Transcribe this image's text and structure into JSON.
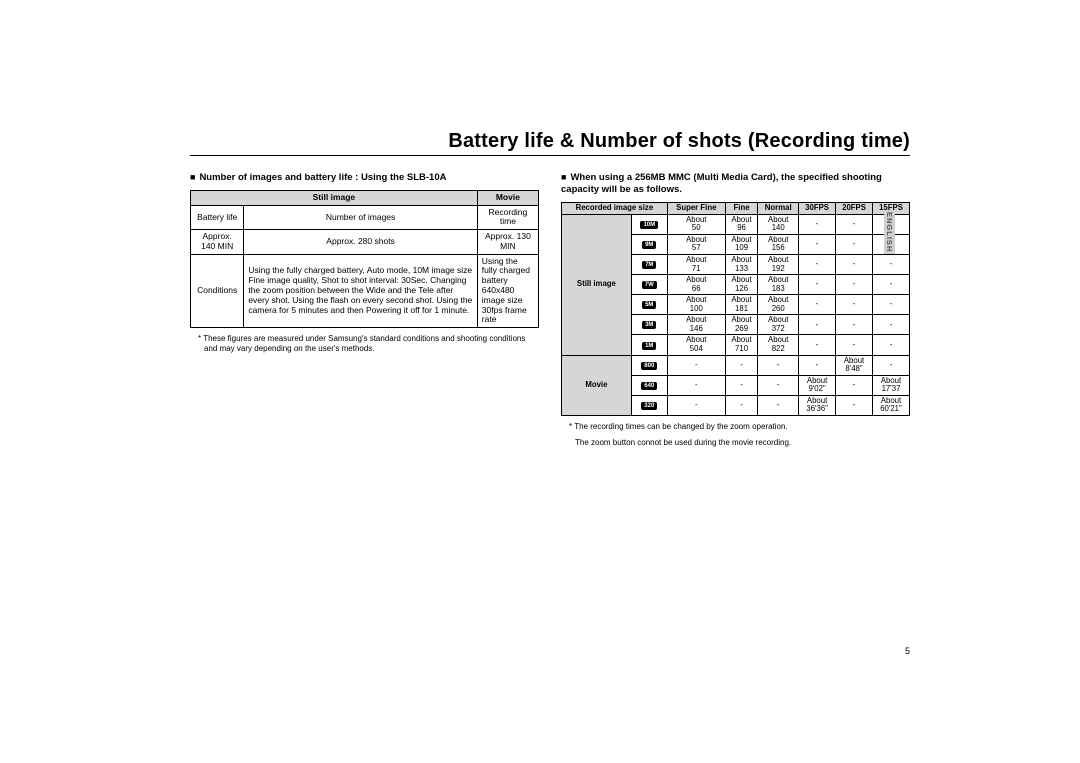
{
  "title": "Battery life & Number of shots (Recording time)",
  "side_tab": "ENGLISH",
  "page_number": "5",
  "left": {
    "heading": "Number of images and battery life : Using the SLB-10A",
    "table": {
      "headers": {
        "still": "Still image",
        "movie": "Movie"
      },
      "row_labels": {
        "batt": "Battery life",
        "num": "Number of images",
        "rec": "Recording time"
      },
      "values": {
        "batt": "Approx. 140 MIN",
        "num": "Approx. 280 shots",
        "rec": "Approx. 130 MIN"
      },
      "conditions_label": "Conditions",
      "conditions_still": "Using the fully charged battery, Auto mode, 10M image size Fine image quality, Shot to shot interval: 30Sec. Changing the zoom position between the Wide and the Tele after every shot. Using the flash on every second shot. Using the camera for 5 minutes and then Powering it off for 1 minute.",
      "conditions_movie": "Using the fully charged battery\n640x480 image size\n30fps frame rate"
    },
    "footnote": "* These figures are measured under Samsung's standard conditions and shooting conditions and may vary depending on the user's methods."
  },
  "right": {
    "heading": "When using a 256MB MMC (Multi Media Card), the specified shooting capacity will be as follows.",
    "columns": [
      "Recorded image size",
      "Super Fine",
      "Fine",
      "Normal",
      "30FPS",
      "20FPS",
      "15FPS"
    ],
    "group_still": "Still image",
    "group_movie": "Movie",
    "still_rows": [
      {
        "icon": "10M",
        "sf": "About 50",
        "f": "About 96",
        "n": "About 140",
        "c30": "-",
        "c20": "-",
        "c15": "-"
      },
      {
        "icon": "9M",
        "sf": "About 57",
        "f": "About 109",
        "n": "About 156",
        "c30": "-",
        "c20": "-",
        "c15": "-"
      },
      {
        "icon": "7M",
        "sf": "About 71",
        "f": "About 133",
        "n": "About 192",
        "c30": "-",
        "c20": "-",
        "c15": "-"
      },
      {
        "icon": "7W",
        "sf": "About 66",
        "f": "About 126",
        "n": "About 183",
        "c30": "-",
        "c20": "-",
        "c15": "-"
      },
      {
        "icon": "5M",
        "sf": "About 100",
        "f": "About 181",
        "n": "About 260",
        "c30": "-",
        "c20": "-",
        "c15": "-"
      },
      {
        "icon": "3M",
        "sf": "About 146",
        "f": "About 269",
        "n": "About 372",
        "c30": "-",
        "c20": "-",
        "c15": "-"
      },
      {
        "icon": "1M",
        "sf": "About 504",
        "f": "About 710",
        "n": "About 822",
        "c30": "-",
        "c20": "-",
        "c15": "-"
      }
    ],
    "movie_rows": [
      {
        "icon": "800",
        "sf": "-",
        "f": "-",
        "n": "-",
        "c30": "-",
        "c20": "About 8'48\"",
        "c15": "-"
      },
      {
        "icon": "640",
        "sf": "-",
        "f": "-",
        "n": "-",
        "c30": "About 9'02\"",
        "c20": "-",
        "c15": "About 17'37"
      },
      {
        "icon": "320",
        "sf": "-",
        "f": "-",
        "n": "-",
        "c30": "About 36'36\"",
        "c20": "-",
        "c15": "About 60'21\""
      }
    ],
    "footnote1": "* The recording times can be changed by the zoom operation.",
    "footnote2": "The zoom button connot be used during the movie recording."
  }
}
